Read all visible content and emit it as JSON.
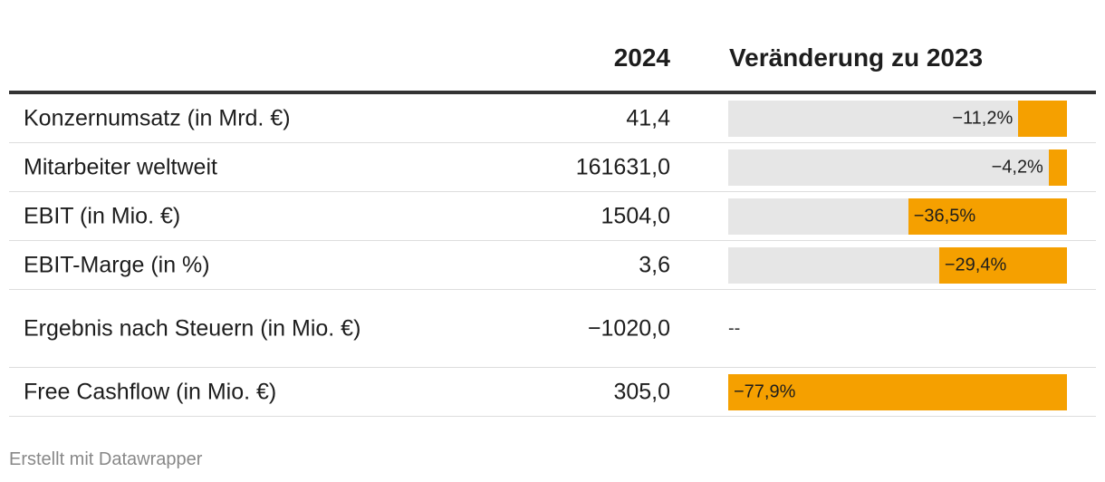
{
  "chart_data": {
    "type": "table",
    "columns": [
      "",
      "2024",
      "Veränderung zu 2023"
    ],
    "rows": [
      {
        "label": "Konzernumsatz (in Mrd. €)",
        "value": "41,4",
        "change": -11.2,
        "change_label": "−11,2%"
      },
      {
        "label": "Mitarbeiter weltweit",
        "value": "161631,0",
        "change": -4.2,
        "change_label": "−4,2%"
      },
      {
        "label": "EBIT (in Mio. €)",
        "value": "1504,0",
        "change": -36.5,
        "change_label": "−36,5%"
      },
      {
        "label": "EBIT-Marge (in %)",
        "value": "3,6",
        "change": -29.4,
        "change_label": "−29,4%"
      },
      {
        "label": "Ergebnis nach Steuern (in Mio. €)",
        "value": "−1020,0",
        "change": null,
        "change_label": "--"
      },
      {
        "label": "Free Cashflow (in Mio. €)",
        "value": "305,0",
        "change": -77.9,
        "change_label": "−77,9%"
      }
    ],
    "bar_range": [
      -77.9,
      0
    ],
    "colors": {
      "bar": "#f5a000",
      "bar_background": "#e6e6e6"
    }
  },
  "footer": "Erstellt mit Datawrapper"
}
